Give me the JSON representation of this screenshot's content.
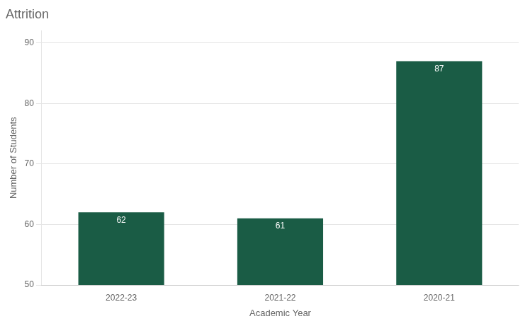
{
  "chart_data": {
    "type": "bar",
    "title": "Attrition",
    "xlabel": "Academic Year",
    "ylabel": "Number of Students",
    "categories": [
      "2022-23",
      "2021-22",
      "2020-21"
    ],
    "values": [
      62,
      61,
      87
    ],
    "color": "#1a5c45",
    "ylim": [
      50,
      92
    ],
    "yticks": [
      50,
      60,
      70,
      80,
      90
    ],
    "grid": true,
    "data_labels": true
  }
}
